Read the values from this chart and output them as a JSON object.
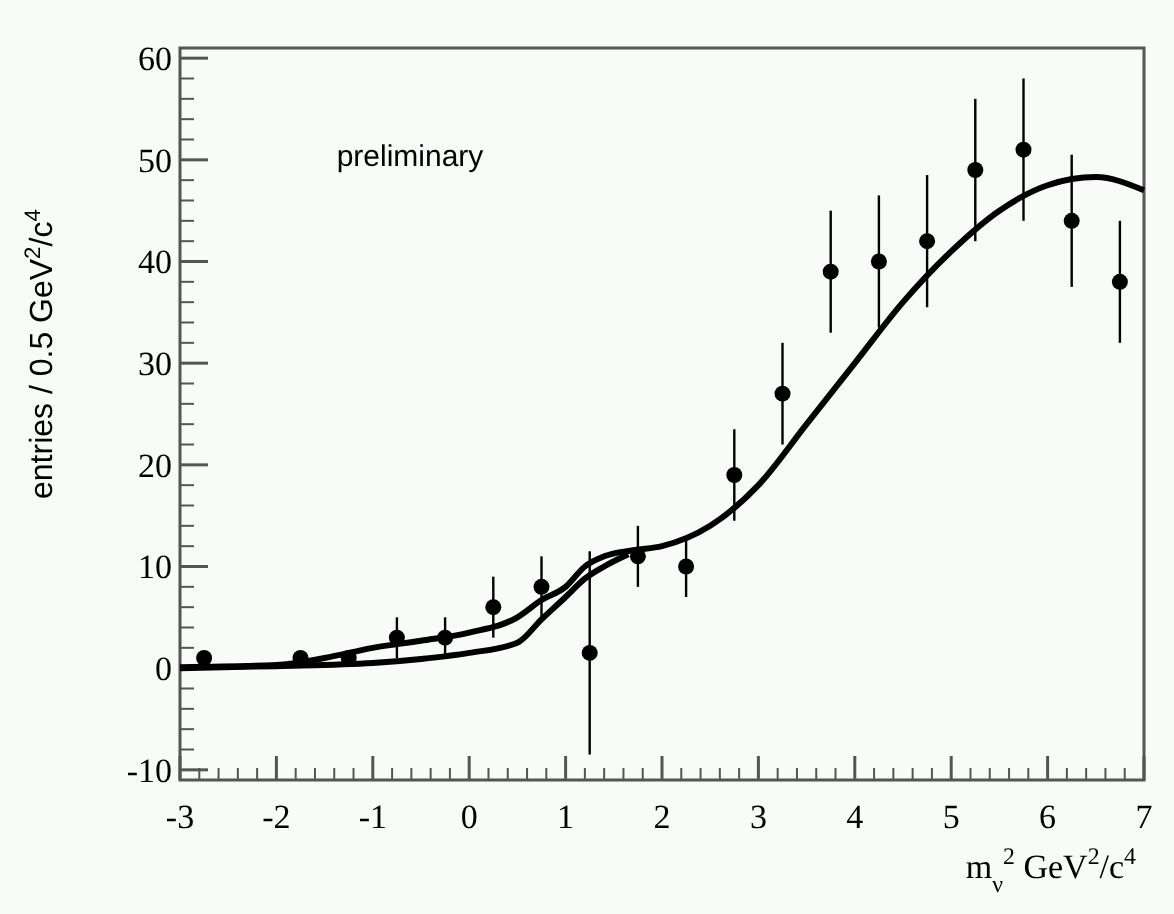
{
  "chart_data": {
    "type": "scatter",
    "xlabel": "m$_{ν}$$^{2}$  GeV$^{2}$/c$^{4}$",
    "ylabel": "entries / 0.5 GeV$^{2}$/c$^{4}$",
    "annotations": [
      "preliminary"
    ],
    "xlim": [
      -3,
      7
    ],
    "ylim": [
      -11,
      61
    ],
    "xticks": [
      -3,
      -2,
      -1,
      0,
      1,
      2,
      3,
      4,
      5,
      6,
      7
    ],
    "yticks": [
      -10,
      0,
      10,
      20,
      30,
      40,
      50,
      60
    ],
    "grid": false,
    "series": [
      {
        "color": "#000000",
        "marker": "circle",
        "x": [
          -2.75,
          -1.75,
          -1.25,
          -0.75,
          -0.25,
          0.25,
          0.75,
          1.25,
          1.75,
          2.25,
          2.75,
          3.25,
          3.75,
          4.25,
          4.75,
          5.25,
          5.75,
          6.25,
          6.75
        ],
        "values": [
          1,
          1,
          1,
          3,
          3,
          6,
          8,
          1.5,
          11,
          10,
          19,
          27,
          39,
          40,
          42,
          49,
          51,
          44,
          38
        ],
        "errors": [
          null,
          null,
          null,
          2,
          2,
          3,
          3,
          10,
          3,
          3,
          4.5,
          5,
          6,
          6.5,
          6.5,
          7,
          7,
          6.5,
          6
        ]
      },
      {
        "type": "line",
        "color": "#000000",
        "line_style": "solid",
        "x": [
          -3,
          -2,
          -1.5,
          -1,
          -0.5,
          0,
          0.5,
          0.75,
          1,
          1.2,
          1.4,
          1.7,
          2,
          2.5,
          3,
          3.5,
          4,
          4.5,
          5,
          5.5,
          6,
          6.5,
          7
        ],
        "values": [
          0.1,
          0.3,
          1,
          2,
          2.7,
          3.5,
          5,
          6.7,
          8,
          10,
          11,
          11.6,
          12,
          14,
          18,
          24,
          30,
          36,
          41,
          45,
          47.5,
          48.3,
          47
        ]
      },
      {
        "type": "line",
        "color": "#000000",
        "line_style": "solid",
        "x": [
          -3,
          -2,
          -1,
          -0.5,
          0,
          0.5,
          0.75,
          1,
          1.2,
          1.4,
          1.65
        ],
        "values": [
          0,
          0.2,
          0.5,
          0.9,
          1.5,
          2.5,
          4.8,
          7,
          8.8,
          10,
          11.2
        ]
      }
    ]
  }
}
